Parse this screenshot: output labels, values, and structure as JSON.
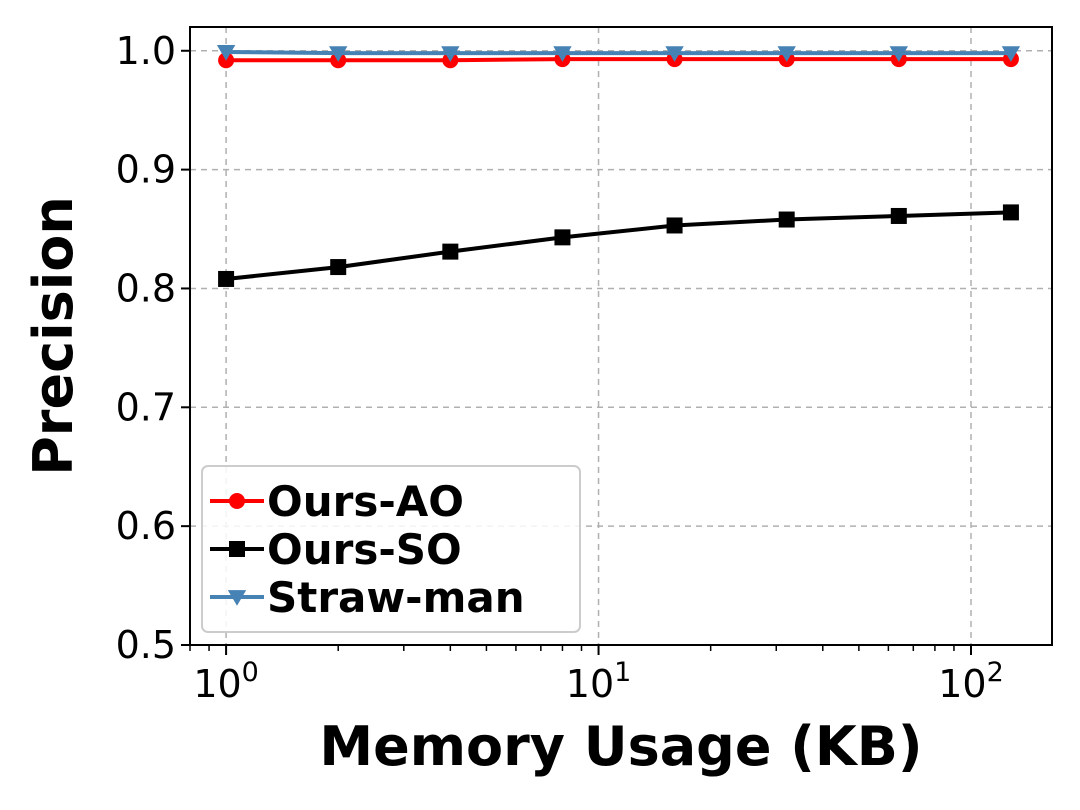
{
  "chart_data": {
    "type": "line",
    "xlabel": "Memory Usage (KB)",
    "ylabel": "Precision",
    "xscale": "log",
    "xlim": [
      0.8,
      165
    ],
    "ylim": [
      0.5,
      1.02
    ],
    "grid": true,
    "legend_position": "lower-left",
    "x": [
      1,
      2,
      4,
      8,
      16,
      32,
      64,
      128
    ],
    "x_ticks": [
      {
        "base": "10",
        "exp": "0",
        "value": 1
      },
      {
        "base": "10",
        "exp": "1",
        "value": 10
      },
      {
        "base": "10",
        "exp": "2",
        "value": 100
      }
    ],
    "y_ticks": [
      "0.5",
      "0.6",
      "0.7",
      "0.8",
      "0.9",
      "1.0"
    ],
    "series": [
      {
        "name": "Ours-AO",
        "color": "#ff0000",
        "marker": "circle",
        "values": [
          0.992,
          0.992,
          0.992,
          0.993,
          0.993,
          0.993,
          0.993,
          0.993
        ]
      },
      {
        "name": "Ours-SO",
        "color": "#000000",
        "marker": "square",
        "values": [
          0.808,
          0.818,
          0.831,
          0.843,
          0.853,
          0.858,
          0.861,
          0.864
        ]
      },
      {
        "name": "Straw-man",
        "color": "#4682b4",
        "marker": "triangle-down",
        "values": [
          0.999,
          0.998,
          0.998,
          0.998,
          0.998,
          0.998,
          0.998,
          0.998
        ]
      }
    ]
  }
}
